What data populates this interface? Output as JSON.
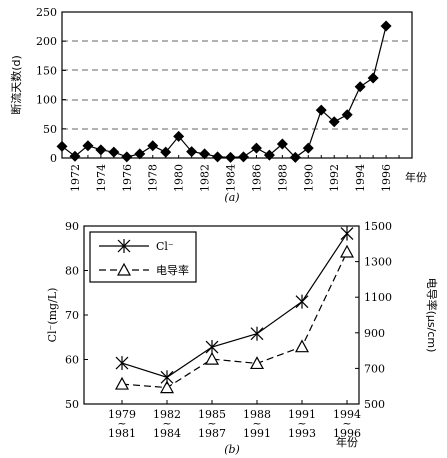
{
  "chart_data": [
    {
      "type": "line",
      "x": [
        1971,
        1972,
        1973,
        1974,
        1975,
        1976,
        1977,
        1978,
        1979,
        1980,
        1981,
        1982,
        1983,
        1984,
        1985,
        1986,
        1987,
        1988,
        1989,
        1990,
        1991,
        1992,
        1993,
        1994,
        1995,
        1996,
        1997
      ],
      "series": [
        {
          "values": [
            20,
            3,
            21,
            14,
            10,
            2,
            7,
            21,
            10,
            37,
            11,
            7,
            2,
            1,
            2,
            17,
            5,
            24,
            1,
            17,
            82,
            62,
            74,
            122,
            137,
            226,
            null
          ]
        }
      ],
      "xticks": [
        "1972",
        "1974",
        "1976",
        "1978",
        "1980",
        "1982",
        "1984",
        "1986",
        "1988",
        "1990",
        "1992",
        "1994",
        "1996"
      ],
      "xlabel": "年份",
      "ylabel": "断流天数(d)",
      "ylim": [
        0,
        250
      ],
      "yticks": [
        0,
        50,
        100,
        150,
        200,
        250
      ],
      "grid": "dashed horizontal",
      "marker": "diamond",
      "caption": "(a)"
    },
    {
      "type": "line",
      "categories": [
        "1979~1981",
        "1982~1984",
        "1985~1987",
        "1988~1991",
        "1991~1993",
        "1994~1996"
      ],
      "tick_top": [
        "1979",
        "1982",
        "1985",
        "1988",
        "1991",
        "1994"
      ],
      "tick_bottom": [
        "1981",
        "1984",
        "1987",
        "1991",
        "1993",
        "1996"
      ],
      "series": [
        {
          "name": "Cl⁻",
          "axis": "left",
          "values": [
            59.2,
            56.0,
            62.8,
            65.8,
            73.0,
            88.3
          ],
          "marker": "star",
          "line": "solid"
        },
        {
          "name": "电导率",
          "axis": "right",
          "values": [
            612,
            592,
            752,
            728,
            822,
            1354
          ],
          "marker": "triangle",
          "line": "dashed"
        }
      ],
      "ylabel_left": "Cl⁻(mg/L)",
      "ylim_left": [
        50,
        90
      ],
      "yticks_left": [
        50,
        60,
        70,
        80,
        90
      ],
      "ylabel_right": "电导率(μs/cm)",
      "ylim_right": [
        500,
        1500
      ],
      "yticks_right": [
        500,
        700,
        900,
        1100,
        1300,
        1500
      ],
      "xlabel": "年份",
      "legend": "top-left",
      "caption": "(b)"
    }
  ]
}
